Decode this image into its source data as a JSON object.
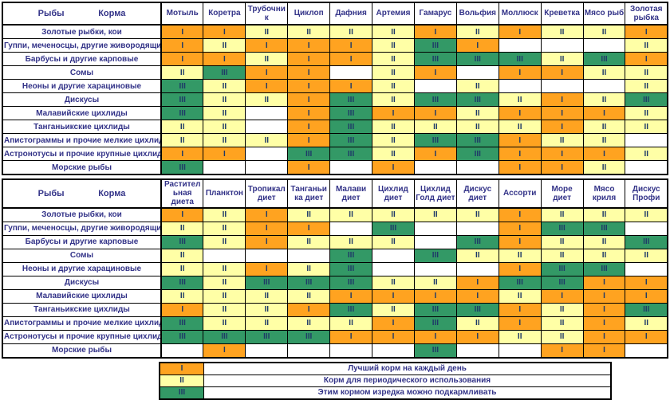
{
  "palette": {
    "best": "#FFA320",
    "periodic": "#FFFFA6",
    "rare": "#339966",
    "label_text": "#333388",
    "numeral_text": "#1F3A68"
  },
  "corner": {
    "fish": "Рыбы",
    "food": "Корма"
  },
  "chart_data": [
    {
      "type": "table",
      "name": "natural-live-foods",
      "columns": [
        "Мотыль",
        "Коретра",
        "Трубочник",
        "Циклоп",
        "Дафния",
        "Артемия",
        "Гамарус",
        "Вольфия",
        "Моллюск",
        "Креветка",
        "Мясо рыб",
        "Золотая рыбка"
      ],
      "fish": [
        "Золотые рыбки, кои",
        "Гуппи, меченосцы, другие живородящие",
        "Барбусы  и другие карповые",
        "Сомы",
        "Неоны и другие харациновые",
        "Дискусы",
        "Малавийские цихлиды",
        "Танганьикские цихлиды",
        "Апистограммы и прочие мелкие цихлиды",
        "Астронотусы и прочие крупные цихлиды",
        "Морские рыбы"
      ],
      "values": [
        [
          "I",
          "I",
          "II",
          "II",
          "II",
          "II",
          "I",
          "II",
          "I",
          "II",
          "II",
          "I"
        ],
        [
          "I",
          "II",
          "I",
          "I",
          "I",
          "II",
          "III",
          "I",
          "",
          "",
          "",
          "II"
        ],
        [
          "I",
          "I",
          "II",
          "I",
          "I",
          "II",
          "III",
          "III",
          "III",
          "II",
          "III",
          "I"
        ],
        [
          "II",
          "III",
          "I",
          "I",
          "",
          "II",
          "I",
          "",
          "I",
          "I",
          "II",
          "II"
        ],
        [
          "III",
          "II",
          "I",
          "I",
          "I",
          "II",
          "",
          "II",
          "",
          "",
          "",
          "II"
        ],
        [
          "III",
          "II",
          "II",
          "I",
          "III",
          "II",
          "III",
          "III",
          "II",
          "I",
          "II",
          "III"
        ],
        [
          "III",
          "II",
          "",
          "I",
          "III",
          "I",
          "I",
          "II",
          "I",
          "I",
          "I",
          "II"
        ],
        [
          "II",
          "II",
          "",
          "I",
          "III",
          "II",
          "II",
          "II",
          "II",
          "I",
          "II",
          "II"
        ],
        [
          "II",
          "II",
          "II",
          "I",
          "III",
          "II",
          "III",
          "III",
          "I",
          "II",
          "II",
          ""
        ],
        [
          "I",
          "I",
          "",
          "III",
          "III",
          "II",
          "I",
          "III",
          "I",
          "I",
          "I",
          "II"
        ],
        [
          "III",
          "",
          "",
          "I",
          "",
          "I",
          "",
          "",
          "I",
          "I",
          "II",
          ""
        ]
      ]
    },
    {
      "type": "table",
      "name": "branded-diets",
      "columns": [
        "Растительная диета",
        "Планктон",
        "Тропикал диет",
        "Танганьика диет",
        "Малави диет",
        "Цихлид диет",
        "Цихлид Голд диет",
        "Дискус диет",
        "Ассорти",
        "Море диет",
        "Мясо криля",
        "Дискус Профи"
      ],
      "fish": [
        "Золотые рыбки, кои",
        "Гуппи, меченосцы, другие живородящие",
        "Барбусы  и другие карповые",
        "Сомы",
        "Неоны и другие харациновые",
        "Дискусы",
        "Малавийские цихлиды",
        "Танганьикские цихлиды",
        "Апистограммы и прочие мелкие цихлиды",
        "Астронотусы и прочие крупные цихлиды",
        "Морские рыбы"
      ],
      "values": [
        [
          "I",
          "II",
          "I",
          "II",
          "II",
          "II",
          "II",
          "II",
          "I",
          "II",
          "II",
          "II"
        ],
        [
          "II",
          "II",
          "I",
          "I",
          "",
          "III",
          "",
          "",
          "I",
          "III",
          "III",
          ""
        ],
        [
          "III",
          "II",
          "I",
          "II",
          "II",
          "II",
          "",
          "III",
          "I",
          "II",
          "II",
          "III"
        ],
        [
          "II",
          "",
          "",
          "",
          "III",
          "",
          "III",
          "II",
          "II",
          "II",
          "II",
          "II"
        ],
        [
          "II",
          "II",
          "I",
          "II",
          "III",
          "",
          "",
          "",
          "I",
          "III",
          "III",
          ""
        ],
        [
          "III",
          "II",
          "III",
          "III",
          "III",
          "II",
          "II",
          "I",
          "III",
          "III",
          "I",
          "I"
        ],
        [
          "II",
          "II",
          "II",
          "II",
          "I",
          "I",
          "I",
          "I",
          "II",
          "I",
          "I",
          "I"
        ],
        [
          "I",
          "II",
          "II",
          "I",
          "III",
          "II",
          "III",
          "III",
          "I",
          "II",
          "I",
          "III"
        ],
        [
          "III",
          "II",
          "II",
          "II",
          "II",
          "I",
          "III",
          "II",
          "I",
          "II",
          "I",
          "II"
        ],
        [
          "III",
          "III",
          "III",
          "III",
          "I",
          "I",
          "I",
          "I",
          "II",
          "II",
          "I",
          "I"
        ],
        [
          "",
          "I",
          "",
          "",
          "",
          "",
          "III",
          "",
          "",
          "I",
          "I",
          ""
        ]
      ]
    }
  ],
  "legend": [
    {
      "code": "I",
      "label": "Лучший корм на каждый день"
    },
    {
      "code": "II",
      "label": "Корм для периодического использования"
    },
    {
      "code": "III",
      "label": "Этим кормом изредка можно подкармливать"
    }
  ]
}
